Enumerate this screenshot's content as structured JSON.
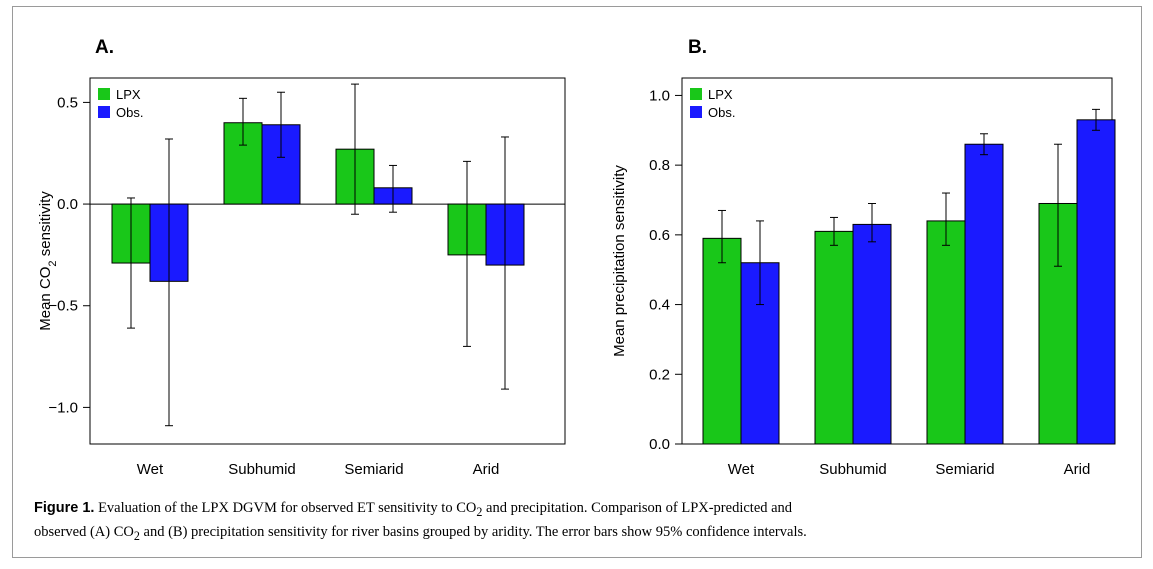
{
  "caption": {
    "label": "Figure 1.",
    "line1_a": " Evaluation of the LPX DGVM for observed ET sensitivity to CO",
    "line1_sub": "2",
    "line1_b": " and precipitation. Comparison of LPX-predicted and",
    "line2_a": "observed (A) CO",
    "line2_sub": "2",
    "line2_b": " and (B) precipitation sensitivity for river basins grouped by aridity. The error bars show 95% confidence intervals."
  },
  "colors": {
    "lpx": "#19c719",
    "obs": "#1a1aff"
  },
  "chart_data": [
    {
      "type": "bar",
      "panel": "A.",
      "categories": [
        "Wet",
        "Subhumid",
        "Semiarid",
        "Arid"
      ],
      "ylabel_main": "Mean CO",
      "ylabel_sub": "2",
      "ylabel_tail": " sensitivity",
      "ylim": [
        -1.18,
        0.62
      ],
      "yticks": [
        -1.0,
        -0.5,
        0.0,
        0.5
      ],
      "ytick_labels": [
        "−1.0",
        "−0.5",
        "0.0",
        "0.5"
      ],
      "zero_line": true,
      "legend_position": "top-left",
      "series": [
        {
          "name": "LPX",
          "values": [
            -0.29,
            0.4,
            0.27,
            -0.25
          ],
          "ci_low": [
            -0.61,
            0.29,
            -0.05,
            -0.7
          ],
          "ci_high": [
            0.03,
            0.52,
            0.59,
            0.21
          ]
        },
        {
          "name": "Obs.",
          "values": [
            -0.38,
            0.39,
            0.08,
            -0.3
          ],
          "ci_low": [
            -1.09,
            0.23,
            -0.04,
            -0.91
          ],
          "ci_high": [
            0.32,
            0.55,
            0.19,
            0.33
          ]
        }
      ]
    },
    {
      "type": "bar",
      "panel": "B.",
      "categories": [
        "Wet",
        "Subhumid",
        "Semiarid",
        "Arid"
      ],
      "ylabel_main": "Mean precipitation sensitivity",
      "ylabel_sub": "",
      "ylabel_tail": "",
      "ylim": [
        0,
        1.05
      ],
      "yticks": [
        0.0,
        0.2,
        0.4,
        0.6,
        0.8,
        1.0
      ],
      "ytick_labels": [
        "0.0",
        "0.2",
        "0.4",
        "0.6",
        "0.8",
        "1.0"
      ],
      "zero_line": false,
      "legend_position": "top-left",
      "series": [
        {
          "name": "LPX",
          "values": [
            0.59,
            0.61,
            0.64,
            0.69
          ],
          "ci_low": [
            0.52,
            0.57,
            0.57,
            0.51
          ],
          "ci_high": [
            0.67,
            0.65,
            0.72,
            0.86
          ]
        },
        {
          "name": "Obs.",
          "values": [
            0.52,
            0.63,
            0.86,
            0.93
          ],
          "ci_low": [
            0.4,
            0.58,
            0.83,
            0.9
          ],
          "ci_high": [
            0.64,
            0.69,
            0.89,
            0.96
          ]
        }
      ]
    }
  ]
}
